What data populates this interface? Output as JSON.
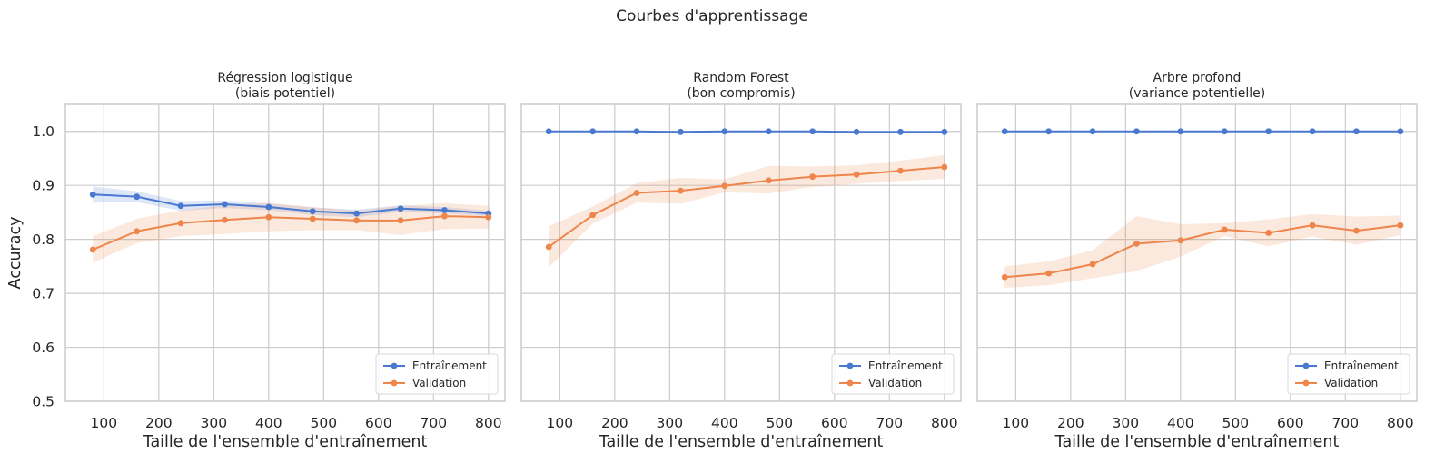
{
  "figure": {
    "title": "Courbes d'apprentissage"
  },
  "colors": {
    "train": "#4878d0",
    "validation": "#ee854a",
    "grid": "#cccccc",
    "frame": "#cccccc"
  },
  "legend": {
    "train_label": "Entraînement",
    "val_label": "Validation"
  },
  "chart_data": [
    {
      "type": "line",
      "title_line1": "Régression logistique",
      "title_line2": "(biais potentiel)",
      "xlabel": "Taille de l'ensemble d'entraînement",
      "ylabel": "Accuracy",
      "xlim": [
        30,
        830
      ],
      "ylim": [
        0.5,
        1.05
      ],
      "xticks": [
        100,
        200,
        300,
        400,
        500,
        600,
        700,
        800
      ],
      "yticks": [
        0.5,
        0.6,
        0.7,
        0.8,
        0.9,
        1.0
      ],
      "grid": true,
      "legend_position": "lower-right",
      "x": [
        80,
        160,
        240,
        320,
        400,
        480,
        560,
        640,
        720,
        800
      ],
      "series": [
        {
          "name": "Entraînement",
          "values": [
            0.883,
            0.879,
            0.862,
            0.865,
            0.86,
            0.852,
            0.848,
            0.857,
            0.854,
            0.848
          ],
          "lower": [
            0.868,
            0.869,
            0.853,
            0.858,
            0.854,
            0.845,
            0.841,
            0.851,
            0.848,
            0.843
          ],
          "upper": [
            0.898,
            0.889,
            0.871,
            0.872,
            0.866,
            0.859,
            0.855,
            0.863,
            0.86,
            0.853
          ]
        },
        {
          "name": "Validation",
          "values": [
            0.781,
            0.815,
            0.83,
            0.836,
            0.841,
            0.838,
            0.835,
            0.835,
            0.843,
            0.841
          ],
          "lower": [
            0.757,
            0.793,
            0.806,
            0.81,
            0.815,
            0.817,
            0.817,
            0.808,
            0.819,
            0.82
          ],
          "upper": [
            0.806,
            0.838,
            0.854,
            0.863,
            0.868,
            0.86,
            0.853,
            0.862,
            0.867,
            0.862
          ]
        }
      ]
    },
    {
      "type": "line",
      "title_line1": "Random Forest",
      "title_line2": "(bon compromis)",
      "xlabel": "Taille de l'ensemble d'entraînement",
      "ylabel": "",
      "xlim": [
        30,
        830
      ],
      "ylim": [
        0.5,
        1.05
      ],
      "xticks": [
        100,
        200,
        300,
        400,
        500,
        600,
        700,
        800
      ],
      "yticks": [
        0.5,
        0.6,
        0.7,
        0.8,
        0.9,
        1.0
      ],
      "grid": true,
      "legend_position": "lower-right",
      "x": [
        80,
        160,
        240,
        320,
        400,
        480,
        560,
        640,
        720,
        800
      ],
      "series": [
        {
          "name": "Entraînement",
          "values": [
            1.0,
            1.0,
            1.0,
            0.999,
            1.0,
            1.0,
            1.0,
            0.999,
            0.999,
            0.999
          ],
          "lower": [
            0.999,
            0.999,
            0.999,
            0.998,
            0.999,
            0.999,
            0.999,
            0.998,
            0.998,
            0.998
          ],
          "upper": [
            1.0,
            1.0,
            1.0,
            1.0,
            1.0,
            1.0,
            1.0,
            1.0,
            1.0,
            1.0
          ]
        },
        {
          "name": "Validation",
          "values": [
            0.786,
            0.845,
            0.886,
            0.89,
            0.899,
            0.909,
            0.916,
            0.92,
            0.927,
            0.934
          ],
          "lower": [
            0.748,
            0.829,
            0.868,
            0.866,
            0.887,
            0.885,
            0.897,
            0.903,
            0.908,
            0.912
          ],
          "upper": [
            0.824,
            0.861,
            0.904,
            0.914,
            0.911,
            0.936,
            0.935,
            0.937,
            0.946,
            0.956
          ]
        }
      ]
    },
    {
      "type": "line",
      "title_line1": "Arbre profond",
      "title_line2": "(variance potentielle)",
      "xlabel": "Taille de l'ensemble d'entraînement",
      "ylabel": "",
      "xlim": [
        30,
        830
      ],
      "ylim": [
        0.5,
        1.05
      ],
      "xticks": [
        100,
        200,
        300,
        400,
        500,
        600,
        700,
        800
      ],
      "yticks": [
        0.5,
        0.6,
        0.7,
        0.8,
        0.9,
        1.0
      ],
      "grid": true,
      "legend_position": "lower-right",
      "x": [
        80,
        160,
        240,
        320,
        400,
        480,
        560,
        640,
        720,
        800
      ],
      "series": [
        {
          "name": "Entraînement",
          "values": [
            1.0,
            1.0,
            1.0,
            1.0,
            1.0,
            1.0,
            1.0,
            1.0,
            1.0,
            1.0
          ],
          "lower": [
            0.999,
            0.999,
            0.999,
            0.999,
            0.999,
            0.999,
            0.999,
            0.999,
            0.999,
            0.999
          ],
          "upper": [
            1.0,
            1.0,
            1.0,
            1.0,
            1.0,
            1.0,
            1.0,
            1.0,
            1.0,
            1.0
          ]
        },
        {
          "name": "Validation",
          "values": [
            0.73,
            0.737,
            0.754,
            0.792,
            0.798,
            0.818,
            0.812,
            0.826,
            0.816,
            0.826
          ],
          "lower": [
            0.71,
            0.715,
            0.728,
            0.741,
            0.768,
            0.806,
            0.787,
            0.805,
            0.79,
            0.808
          ],
          "upper": [
            0.75,
            0.759,
            0.78,
            0.843,
            0.828,
            0.83,
            0.837,
            0.847,
            0.842,
            0.844
          ]
        }
      ]
    }
  ]
}
